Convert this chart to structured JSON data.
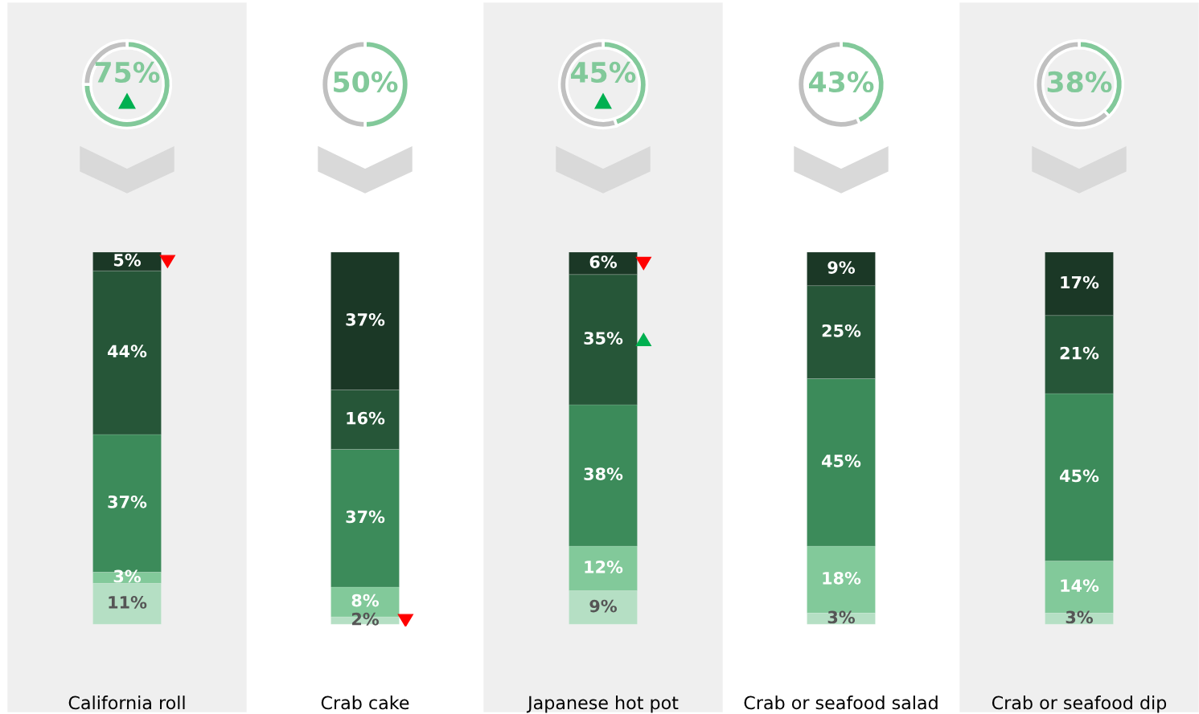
{
  "chart_data": [
    {
      "type": "donut",
      "categories": [
        null,
        null
      ],
      "values": [
        75,
        25
      ],
      "colors": [
        "#82c99a",
        "#c0c0c0"
      ],
      "value_labels": [
        "75%",
        null
      ]
    },
    {
      "type": "donut",
      "categories": [
        null,
        null
      ],
      "values": [
        50,
        50
      ],
      "colors": [
        "#82c99a",
        "#c0c0c0"
      ],
      "value_labels": [
        "50%",
        null
      ]
    },
    {
      "type": "donut",
      "categories": [
        null,
        null
      ],
      "values": [
        45,
        55
      ],
      "colors": [
        "#82c99a",
        "#c0c0c0"
      ],
      "value_labels": [
        "45%",
        null
      ]
    },
    {
      "type": "donut",
      "categories": [
        null,
        null
      ],
      "values": [
        43,
        57
      ],
      "colors": [
        "#82c99a",
        "#c0c0c0"
      ],
      "value_labels": [
        "43%",
        null
      ]
    },
    {
      "type": "donut",
      "categories": [
        null,
        null
      ],
      "values": [
        38,
        62
      ],
      "colors": [
        "#82c99a",
        "#c0c0c0"
      ],
      "value_labels": [
        "38%",
        null
      ]
    },
    {
      "type": "bar",
      "stacked": true,
      "tick_labels": "x",
      "categories": [
        "California roll",
        "Crab cake",
        "Japanese hot pot",
        "Crab or seafood salad",
        "Crab or seafood dip"
      ],
      "series": [
        {
          "color": "#b5dfc4",
          "values": [
            11,
            2,
            9,
            3,
            3
          ],
          "value_labels": [
            "11%",
            "2%",
            "9%",
            "3%",
            "3%"
          ]
        },
        {
          "color": "#82c99a",
          "values": [
            3,
            8,
            12,
            18,
            14
          ],
          "value_labels": [
            "3%",
            "8%",
            "12%",
            "18%",
            "14%"
          ]
        },
        {
          "color": "#3c8b5a",
          "values": [
            37,
            37,
            38,
            45,
            45
          ],
          "value_labels": [
            "37%",
            "37%",
            "38%",
            "45%",
            "45%"
          ]
        },
        {
          "color": "#265638",
          "values": [
            44,
            16,
            35,
            25,
            21
          ],
          "value_labels": [
            "44%",
            "16%",
            "35%",
            "25%",
            "21%"
          ]
        },
        {
          "color": "#1b3826",
          "values": [
            5,
            37,
            6,
            9,
            17
          ],
          "value_labels": [
            "5%",
            "37%",
            "6%",
            "9%",
            "17%"
          ]
        }
      ]
    }
  ]
}
